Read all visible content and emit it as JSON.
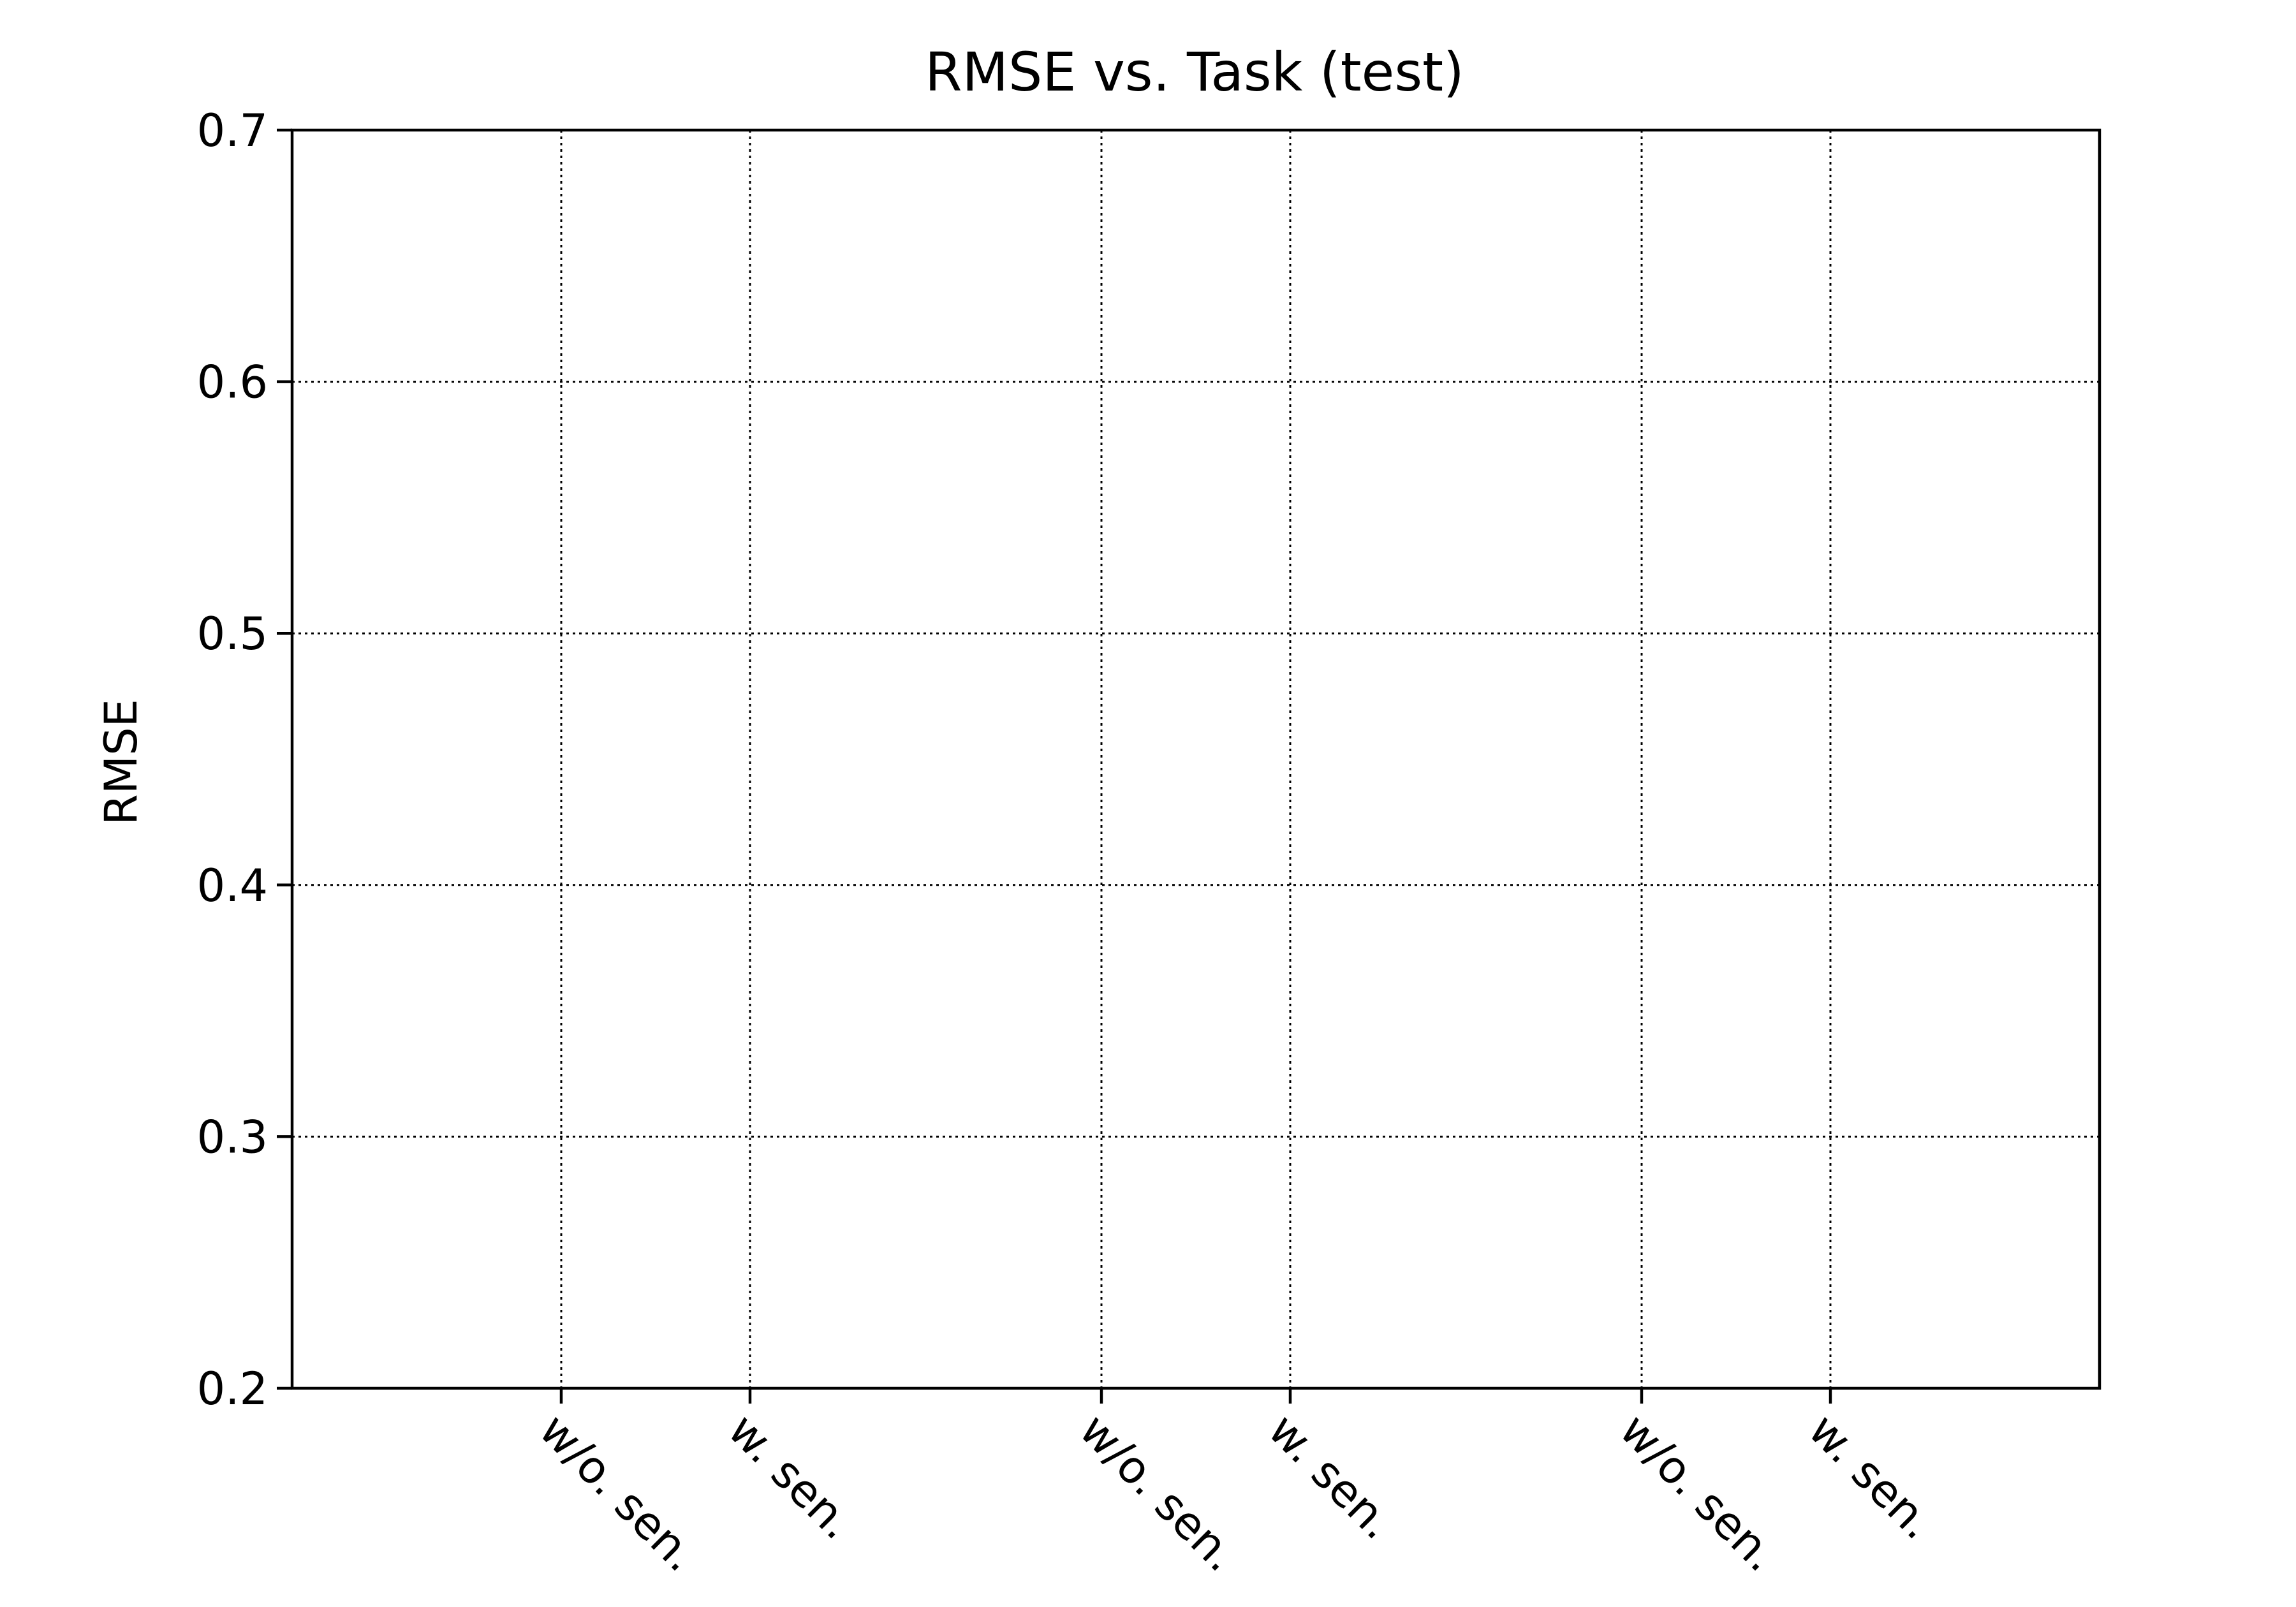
{
  "chart_data": {
    "type": "bar",
    "title": "RMSE vs. Task (test)",
    "xlabel": "",
    "ylabel": "RMSE",
    "ylim": [
      0.2,
      0.7
    ],
    "yticks": [
      "0.2",
      "0.3",
      "0.4",
      "0.5",
      "0.6",
      "0.7"
    ],
    "categories": [
      "w/o. sen.",
      "w. sen.",
      "w/o. sen.",
      "w. sen.",
      "w/o. sen.",
      "w. sen."
    ],
    "series": [],
    "grid": true
  }
}
